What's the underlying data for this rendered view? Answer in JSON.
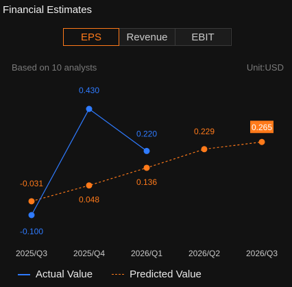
{
  "header": {
    "title": "Financial Estimates"
  },
  "tabs": [
    {
      "label": "EPS",
      "active": true
    },
    {
      "label": "Revenue",
      "active": false
    },
    {
      "label": "EBIT",
      "active": false
    }
  ],
  "info": {
    "analysts": "Based on 10 analysts",
    "unit": "Unit:USD"
  },
  "colors": {
    "actual": "#2f7bff",
    "predicted": "#ff7a1a",
    "axis_label": "#c8c8c8",
    "highlight_text": "#ffffff"
  },
  "chart_data": {
    "type": "line",
    "categories": [
      "2025/Q3",
      "2025/Q4",
      "2026/Q1",
      "2026/Q2",
      "2026/Q3"
    ],
    "series": [
      {
        "name": "Actual Value",
        "style": "solid",
        "values": [
          -0.1,
          0.43,
          0.22,
          null,
          null
        ],
        "labels": [
          "-0.100",
          "0.430",
          "0.220",
          null,
          null
        ]
      },
      {
        "name": "Predicted Value",
        "style": "dashed",
        "values": [
          -0.031,
          0.048,
          0.136,
          0.229,
          0.265
        ],
        "labels": [
          "-0.031",
          "0.048",
          "0.136",
          "0.229",
          "0.265"
        ],
        "highlighted_index": 4
      }
    ],
    "grid": false,
    "legend": "bottom-left"
  },
  "legend": {
    "actual_label": "Actual Value",
    "predicted_label": "Predicted Value"
  }
}
